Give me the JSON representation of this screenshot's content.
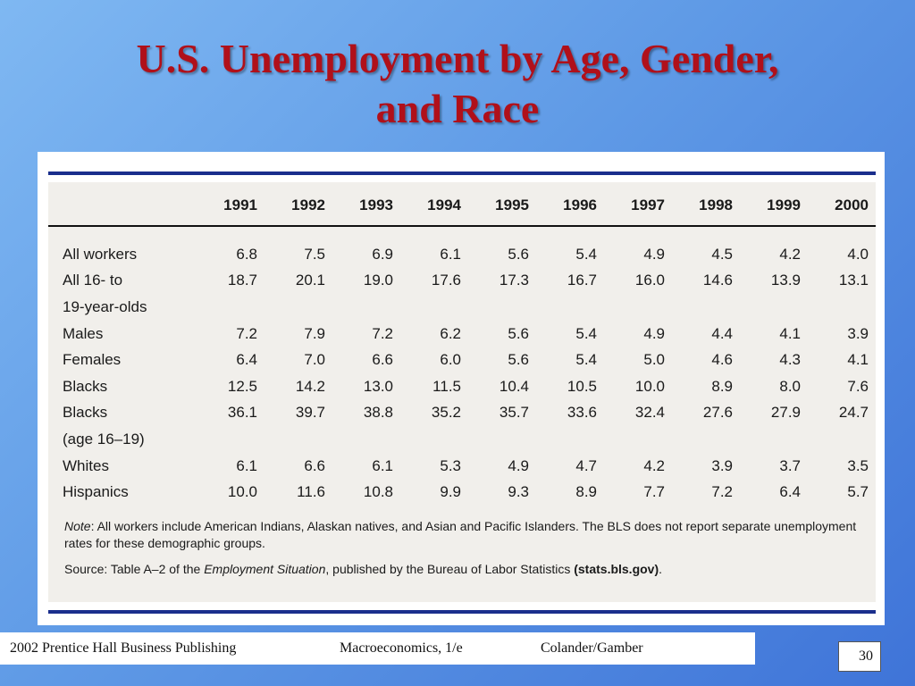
{
  "slide": {
    "title_line1": "U.S. Unemployment by Age, Gender,",
    "title_line2": "and Race",
    "page_number": "30"
  },
  "table": {
    "years": [
      "1991",
      "1992",
      "1993",
      "1994",
      "1995",
      "1996",
      "1997",
      "1998",
      "1999",
      "2000"
    ],
    "rows": [
      {
        "label": "All workers",
        "values": [
          "6.8",
          "7.5",
          "6.9",
          "6.1",
          "5.6",
          "5.4",
          "4.9",
          "4.5",
          "4.2",
          "4.0"
        ]
      },
      {
        "label": "All 16- to",
        "values": [
          "18.7",
          "20.1",
          "19.0",
          "17.6",
          "17.3",
          "16.7",
          "16.0",
          "14.6",
          "13.9",
          "13.1"
        ]
      },
      {
        "label": "19-year-olds",
        "values": [
          "",
          "",
          "",
          "",
          "",
          "",
          "",
          "",
          "",
          ""
        ]
      },
      {
        "label": "Males",
        "values": [
          "7.2",
          "7.9",
          "7.2",
          "6.2",
          "5.6",
          "5.4",
          "4.9",
          "4.4",
          "4.1",
          "3.9"
        ]
      },
      {
        "label": "Females",
        "values": [
          "6.4",
          "7.0",
          "6.6",
          "6.0",
          "5.6",
          "5.4",
          "5.0",
          "4.6",
          "4.3",
          "4.1"
        ]
      },
      {
        "label": "Blacks",
        "values": [
          "12.5",
          "14.2",
          "13.0",
          "11.5",
          "10.4",
          "10.5",
          "10.0",
          "8.9",
          "8.0",
          "7.6"
        ]
      },
      {
        "label": "Blacks",
        "values": [
          "36.1",
          "39.7",
          "38.8",
          "35.2",
          "35.7",
          "33.6",
          "32.4",
          "27.6",
          "27.9",
          "24.7"
        ]
      },
      {
        "label": "(age 16–19)",
        "values": [
          "",
          "",
          "",
          "",
          "",
          "",
          "",
          "",
          "",
          ""
        ]
      },
      {
        "label": "Whites",
        "values": [
          "6.1",
          "6.6",
          "6.1",
          "5.3",
          "4.9",
          "4.7",
          "4.2",
          "3.9",
          "3.7",
          "3.5"
        ]
      },
      {
        "label": "Hispanics",
        "values": [
          "10.0",
          "11.6",
          "10.8",
          "9.9",
          "9.3",
          "8.9",
          "7.7",
          "7.2",
          "6.4",
          "5.7"
        ]
      }
    ],
    "note_label": "Note",
    "note_text": ": All workers include American Indians, Alaskan natives, and Asian and Pacific Islanders. The BLS does not report separate unemployment rates for these demographic groups.",
    "source_prefix": "Source: Table A–2 of the ",
    "source_title": "Employment Situation",
    "source_middle": ", published by the Bureau of Labor Statistics ",
    "source_link": "(stats.bls.gov)",
    "source_end": "."
  },
  "footer": {
    "publisher": "2002 Prentice Hall Business Publishing",
    "book": "Macroeconomics, 1/e",
    "authors": "Colander/Gamber"
  },
  "colors": {
    "title": "#b0101a",
    "rule": "#1a2e8c",
    "table_background": "#f1efeb"
  }
}
